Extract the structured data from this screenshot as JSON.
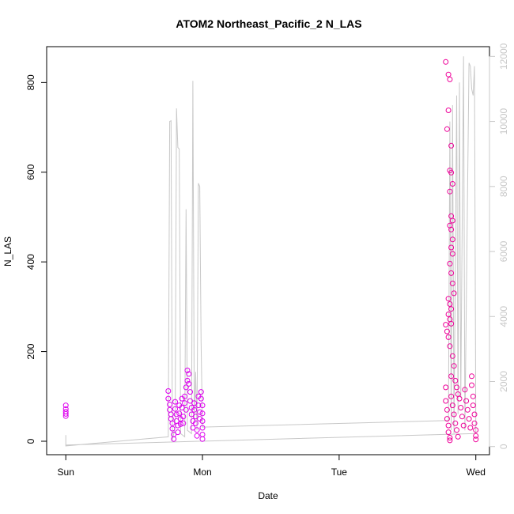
{
  "chart_data": {
    "type": "scatter",
    "title": "ATOM2 Northeast_Pacific_2 N_LAS",
    "xlabel": "Date",
    "ylabel": "N_LAS",
    "x_ticks": [
      {
        "label": "Sun",
        "value": 0
      },
      {
        "label": "Mon",
        "value": 1
      },
      {
        "label": "Tue",
        "value": 2
      },
      {
        "label": "Wed",
        "value": 3
      }
    ],
    "xlim": [
      -0.14,
      3.1
    ],
    "ylim": [
      -30,
      880
    ],
    "y_ticks": [
      0,
      200,
      400,
      600,
      800
    ],
    "y2lim": [
      -250,
      12300
    ],
    "y2_ticks": [
      0,
      2000,
      4000,
      6000,
      8000,
      10000,
      12000
    ],
    "grid": false,
    "colors": {
      "points_early": "#dd00ee",
      "points_late": "#ee0099",
      "secondary_line": "#c8c8c8",
      "secondary_axis": "#c8c8c8",
      "axis": "#000000"
    },
    "series": [
      {
        "axis": "left",
        "style": "points",
        "points": [
          [
            0.0,
            80
          ],
          [
            0.0,
            72
          ],
          [
            0.0,
            66
          ],
          [
            0.0,
            61
          ],
          [
            0.0,
            56
          ],
          [
            0.75,
            112
          ],
          [
            0.75,
            95
          ],
          [
            0.76,
            82
          ],
          [
            0.76,
            70
          ],
          [
            0.77,
            60
          ],
          [
            0.77,
            50
          ],
          [
            0.78,
            40
          ],
          [
            0.78,
            28
          ],
          [
            0.79,
            15
          ],
          [
            0.79,
            5
          ],
          [
            0.8,
            88
          ],
          [
            0.8,
            72
          ],
          [
            0.81,
            60
          ],
          [
            0.81,
            45
          ],
          [
            0.82,
            35
          ],
          [
            0.82,
            20
          ],
          [
            0.83,
            80
          ],
          [
            0.83,
            62
          ],
          [
            0.84,
            50
          ],
          [
            0.84,
            38
          ],
          [
            0.85,
            95
          ],
          [
            0.85,
            75
          ],
          [
            0.86,
            55
          ],
          [
            0.86,
            40
          ],
          [
            0.87,
            100
          ],
          [
            0.87,
            85
          ],
          [
            0.88,
            70
          ],
          [
            0.88,
            120
          ],
          [
            0.89,
            135
          ],
          [
            0.89,
            158
          ],
          [
            0.9,
            150
          ],
          [
            0.9,
            128
          ],
          [
            0.91,
            110
          ],
          [
            0.91,
            90
          ],
          [
            0.92,
            75
          ],
          [
            0.92,
            60
          ],
          [
            0.93,
            45
          ],
          [
            0.93,
            30
          ],
          [
            0.94,
            85
          ],
          [
            0.94,
            70
          ],
          [
            0.95,
            55
          ],
          [
            0.95,
            40
          ],
          [
            0.96,
            25
          ],
          [
            0.96,
            12
          ],
          [
            0.97,
            100
          ],
          [
            0.97,
            80
          ],
          [
            0.98,
            65
          ],
          [
            0.98,
            50
          ],
          [
            0.99,
            110
          ],
          [
            0.99,
            95
          ],
          [
            1.0,
            80
          ],
          [
            1.0,
            62
          ],
          [
            1.0,
            45
          ],
          [
            1.0,
            30
          ],
          [
            1.0,
            15
          ],
          [
            1.0,
            5
          ]
        ]
      },
      {
        "axis": "left",
        "style": "points",
        "points": [
          [
            2.78,
            846
          ],
          [
            2.79,
            696
          ],
          [
            2.8,
            818
          ],
          [
            2.81,
            807
          ],
          [
            2.8,
            738
          ],
          [
            2.82,
            659
          ],
          [
            2.81,
            604
          ],
          [
            2.82,
            599
          ],
          [
            2.83,
            574
          ],
          [
            2.81,
            557
          ],
          [
            2.82,
            502
          ],
          [
            2.83,
            492
          ],
          [
            2.81,
            481
          ],
          [
            2.82,
            472
          ],
          [
            2.83,
            450
          ],
          [
            2.82,
            432
          ],
          [
            2.83,
            418
          ],
          [
            2.81,
            396
          ],
          [
            2.82,
            375
          ],
          [
            2.83,
            352
          ],
          [
            2.84,
            330
          ],
          [
            2.8,
            318
          ],
          [
            2.81,
            306
          ],
          [
            2.82,
            295
          ],
          [
            2.8,
            283
          ],
          [
            2.81,
            272
          ],
          [
            2.82,
            262
          ],
          [
            2.78,
            260
          ],
          [
            2.79,
            245
          ],
          [
            2.8,
            232
          ],
          [
            2.81,
            212
          ],
          [
            2.83,
            190
          ],
          [
            2.84,
            168
          ],
          [
            2.82,
            145
          ],
          [
            2.85,
            135
          ],
          [
            2.86,
            120
          ],
          [
            2.87,
            105
          ],
          [
            2.78,
            120
          ],
          [
            2.78,
            90
          ],
          [
            2.79,
            70
          ],
          [
            2.79,
            50
          ],
          [
            2.8,
            35
          ],
          [
            2.8,
            20
          ],
          [
            2.81,
            8
          ],
          [
            2.81,
            2
          ],
          [
            2.82,
            100
          ],
          [
            2.83,
            80
          ],
          [
            2.84,
            60
          ],
          [
            2.85,
            40
          ],
          [
            2.86,
            25
          ],
          [
            2.87,
            10
          ],
          [
            2.88,
            95
          ],
          [
            2.89,
            75
          ],
          [
            2.9,
            55
          ],
          [
            2.91,
            35
          ],
          [
            2.92,
            115
          ],
          [
            2.93,
            90
          ],
          [
            2.94,
            70
          ],
          [
            2.95,
            50
          ],
          [
            2.96,
            30
          ],
          [
            2.97,
            145
          ],
          [
            2.97,
            125
          ],
          [
            2.98,
            100
          ],
          [
            2.98,
            80
          ],
          [
            2.99,
            60
          ],
          [
            2.99,
            40
          ],
          [
            3.0,
            25
          ],
          [
            3.0,
            12
          ],
          [
            3.0,
            4
          ]
        ]
      },
      {
        "axis": "right",
        "style": "line",
        "points": [
          [
            0.0,
            350
          ],
          [
            0.0,
            20
          ],
          [
            0.75,
            300
          ],
          [
            0.76,
            10000
          ],
          [
            0.77,
            10020
          ],
          [
            0.78,
            200
          ],
          [
            0.8,
            600
          ],
          [
            0.81,
            10400
          ],
          [
            0.82,
            9200
          ],
          [
            0.83,
            9150
          ],
          [
            0.84,
            400
          ],
          [
            0.87,
            300
          ],
          [
            0.88,
            7300
          ],
          [
            0.89,
            500
          ],
          [
            0.92,
            400
          ],
          [
            0.93,
            11250
          ],
          [
            0.94,
            800
          ],
          [
            0.95,
            2300
          ],
          [
            0.96,
            500
          ],
          [
            0.97,
            8100
          ],
          [
            0.98,
            8000
          ],
          [
            0.99,
            3200
          ],
          [
            1.0,
            600
          ],
          [
            2.8,
            800
          ],
          [
            2.81,
            10000
          ],
          [
            2.82,
            500
          ],
          [
            2.83,
            10500
          ],
          [
            2.84,
            400
          ],
          [
            2.86,
            10800
          ],
          [
            2.87,
            1000
          ],
          [
            2.88,
            11200
          ],
          [
            2.89,
            1500
          ],
          [
            2.91,
            12000
          ],
          [
            2.92,
            500
          ],
          [
            2.95,
            11800
          ],
          [
            2.96,
            11700
          ],
          [
            2.97,
            11000
          ],
          [
            2.98,
            10800
          ],
          [
            2.99,
            11700
          ],
          [
            3.0,
            600
          ],
          [
            3.0,
            400
          ],
          [
            0.0,
            50
          ]
        ]
      }
    ]
  }
}
